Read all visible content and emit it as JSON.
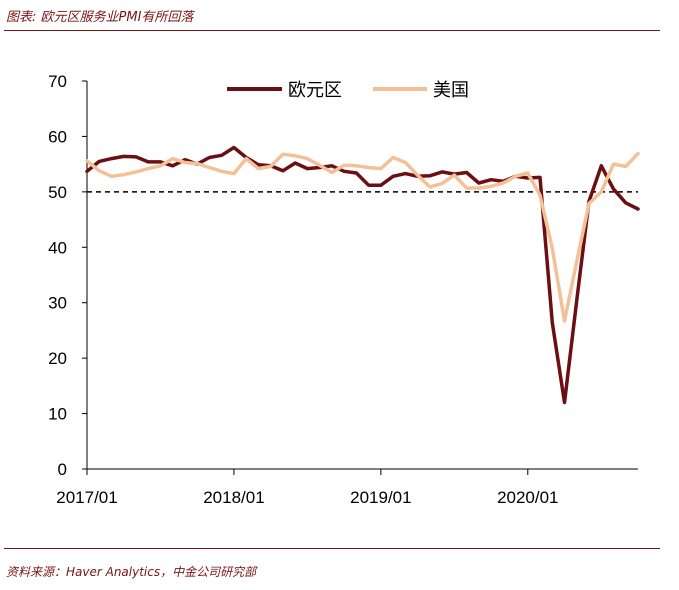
{
  "figure_title": "图表: 欧元区服务业PMI有所回落",
  "source_note": "资料来源：Haver Analytics，中金公司研究部",
  "chart_data": {
    "type": "line",
    "title": "",
    "xlabel": "",
    "ylabel": "",
    "ylim": [
      0,
      70
    ],
    "yticks": [
      0,
      10,
      20,
      30,
      40,
      50,
      60,
      70
    ],
    "xlim": [
      0,
      45
    ],
    "xticks": [
      {
        "pos": 0,
        "label": "2017/01"
      },
      {
        "pos": 12,
        "label": "2018/01"
      },
      {
        "pos": 24,
        "label": "2019/01"
      },
      {
        "pos": 36,
        "label": "2020/01"
      }
    ],
    "reference_line": {
      "y": 50,
      "style": "dashed"
    },
    "legend_position": "top-center",
    "series": [
      {
        "name": "欧元区",
        "color": "#6b0f12",
        "values": [
          53.7,
          55.5,
          56.0,
          56.4,
          56.3,
          55.4,
          55.4,
          54.7,
          55.8,
          55.0,
          56.2,
          56.6,
          58.0,
          56.2,
          54.9,
          54.7,
          53.8,
          55.2,
          54.2,
          54.4,
          54.7,
          53.7,
          53.4,
          51.2,
          51.2,
          52.8,
          53.3,
          52.8,
          52.9,
          53.6,
          53.2,
          53.5,
          51.6,
          52.2,
          51.9,
          52.8,
          52.5,
          52.6,
          26.4,
          12.0,
          30.5,
          48.3,
          54.7,
          50.5,
          48.0,
          46.9
        ]
      },
      {
        "name": "美国",
        "color": "#f4c097",
        "values": [
          55.6,
          53.8,
          52.8,
          53.1,
          53.6,
          54.2,
          54.7,
          56.0,
          55.3,
          55.1,
          54.4,
          53.7,
          53.3,
          56.0,
          54.2,
          54.6,
          56.8,
          56.5,
          56.0,
          54.8,
          53.5,
          54.8,
          54.7,
          54.4,
          54.2,
          56.2,
          55.3,
          53.0,
          50.9,
          51.5,
          53.0,
          50.7,
          50.7,
          51.0,
          51.6,
          52.8,
          53.4,
          49.4,
          39.8,
          26.7,
          37.5,
          47.9,
          50.0,
          55.0,
          54.6,
          56.9
        ]
      }
    ]
  }
}
